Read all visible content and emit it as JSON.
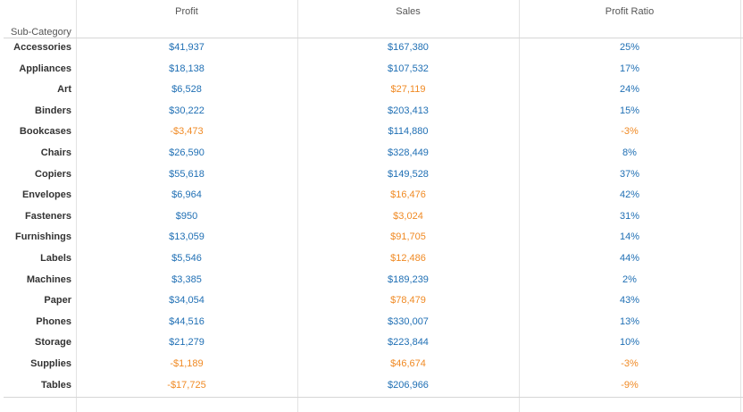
{
  "table": {
    "row_dimension_label": "Sub-Category",
    "columns": [
      "Profit",
      "Sales",
      "Profit Ratio"
    ],
    "colors": {
      "positive": "#1f6fb4",
      "negative": "#f08a24"
    },
    "rows": [
      {
        "name": "Accessories",
        "profit": "$41,937",
        "sales": "$167,380",
        "ratio": "25%",
        "profit_neg": false,
        "sales_neg": false,
        "ratio_neg": false
      },
      {
        "name": "Appliances",
        "profit": "$18,138",
        "sales": "$107,532",
        "ratio": "17%",
        "profit_neg": false,
        "sales_neg": false,
        "ratio_neg": false
      },
      {
        "name": "Art",
        "profit": "$6,528",
        "sales": "$27,119",
        "ratio": "24%",
        "profit_neg": false,
        "sales_neg": true,
        "ratio_neg": false
      },
      {
        "name": "Binders",
        "profit": "$30,222",
        "sales": "$203,413",
        "ratio": "15%",
        "profit_neg": false,
        "sales_neg": false,
        "ratio_neg": false
      },
      {
        "name": "Bookcases",
        "profit": "-$3,473",
        "sales": "$114,880",
        "ratio": "-3%",
        "profit_neg": true,
        "sales_neg": false,
        "ratio_neg": true
      },
      {
        "name": "Chairs",
        "profit": "$26,590",
        "sales": "$328,449",
        "ratio": "8%",
        "profit_neg": false,
        "sales_neg": false,
        "ratio_neg": false
      },
      {
        "name": "Copiers",
        "profit": "$55,618",
        "sales": "$149,528",
        "ratio": "37%",
        "profit_neg": false,
        "sales_neg": false,
        "ratio_neg": false
      },
      {
        "name": "Envelopes",
        "profit": "$6,964",
        "sales": "$16,476",
        "ratio": "42%",
        "profit_neg": false,
        "sales_neg": true,
        "ratio_neg": false
      },
      {
        "name": "Fasteners",
        "profit": "$950",
        "sales": "$3,024",
        "ratio": "31%",
        "profit_neg": false,
        "sales_neg": true,
        "ratio_neg": false
      },
      {
        "name": "Furnishings",
        "profit": "$13,059",
        "sales": "$91,705",
        "ratio": "14%",
        "profit_neg": false,
        "sales_neg": true,
        "ratio_neg": false
      },
      {
        "name": "Labels",
        "profit": "$5,546",
        "sales": "$12,486",
        "ratio": "44%",
        "profit_neg": false,
        "sales_neg": true,
        "ratio_neg": false
      },
      {
        "name": "Machines",
        "profit": "$3,385",
        "sales": "$189,239",
        "ratio": "2%",
        "profit_neg": false,
        "sales_neg": false,
        "ratio_neg": false
      },
      {
        "name": "Paper",
        "profit": "$34,054",
        "sales": "$78,479",
        "ratio": "43%",
        "profit_neg": false,
        "sales_neg": true,
        "ratio_neg": false
      },
      {
        "name": "Phones",
        "profit": "$44,516",
        "sales": "$330,007",
        "ratio": "13%",
        "profit_neg": false,
        "sales_neg": false,
        "ratio_neg": false
      },
      {
        "name": "Storage",
        "profit": "$21,279",
        "sales": "$223,844",
        "ratio": "10%",
        "profit_neg": false,
        "sales_neg": false,
        "ratio_neg": false
      },
      {
        "name": "Supplies",
        "profit": "-$1,189",
        "sales": "$46,674",
        "ratio": "-3%",
        "profit_neg": true,
        "sales_neg": true,
        "ratio_neg": true
      },
      {
        "name": "Tables",
        "profit": "-$17,725",
        "sales": "$206,966",
        "ratio": "-9%",
        "profit_neg": true,
        "sales_neg": false,
        "ratio_neg": true
      }
    ]
  },
  "chart_data": {
    "type": "table",
    "title": "",
    "row_label": "Sub-Category",
    "columns": [
      "Profit",
      "Sales",
      "Profit Ratio"
    ],
    "categories": [
      "Accessories",
      "Appliances",
      "Art",
      "Binders",
      "Bookcases",
      "Chairs",
      "Copiers",
      "Envelopes",
      "Fasteners",
      "Furnishings",
      "Labels",
      "Machines",
      "Paper",
      "Phones",
      "Storage",
      "Supplies",
      "Tables"
    ],
    "series": [
      {
        "name": "Profit",
        "values": [
          41937,
          18138,
          6528,
          30222,
          -3473,
          26590,
          55618,
          6964,
          950,
          13059,
          5546,
          3385,
          34054,
          44516,
          21279,
          -1189,
          -17725
        ]
      },
      {
        "name": "Sales",
        "values": [
          167380,
          107532,
          27119,
          203413,
          114880,
          328449,
          149528,
          16476,
          3024,
          91705,
          12486,
          189239,
          78479,
          330007,
          223844,
          46674,
          206966
        ]
      },
      {
        "name": "Profit Ratio",
        "values": [
          25,
          17,
          24,
          15,
          -3,
          8,
          37,
          42,
          31,
          14,
          44,
          2,
          43,
          13,
          10,
          -3,
          -9
        ]
      }
    ],
    "grid": true
  }
}
